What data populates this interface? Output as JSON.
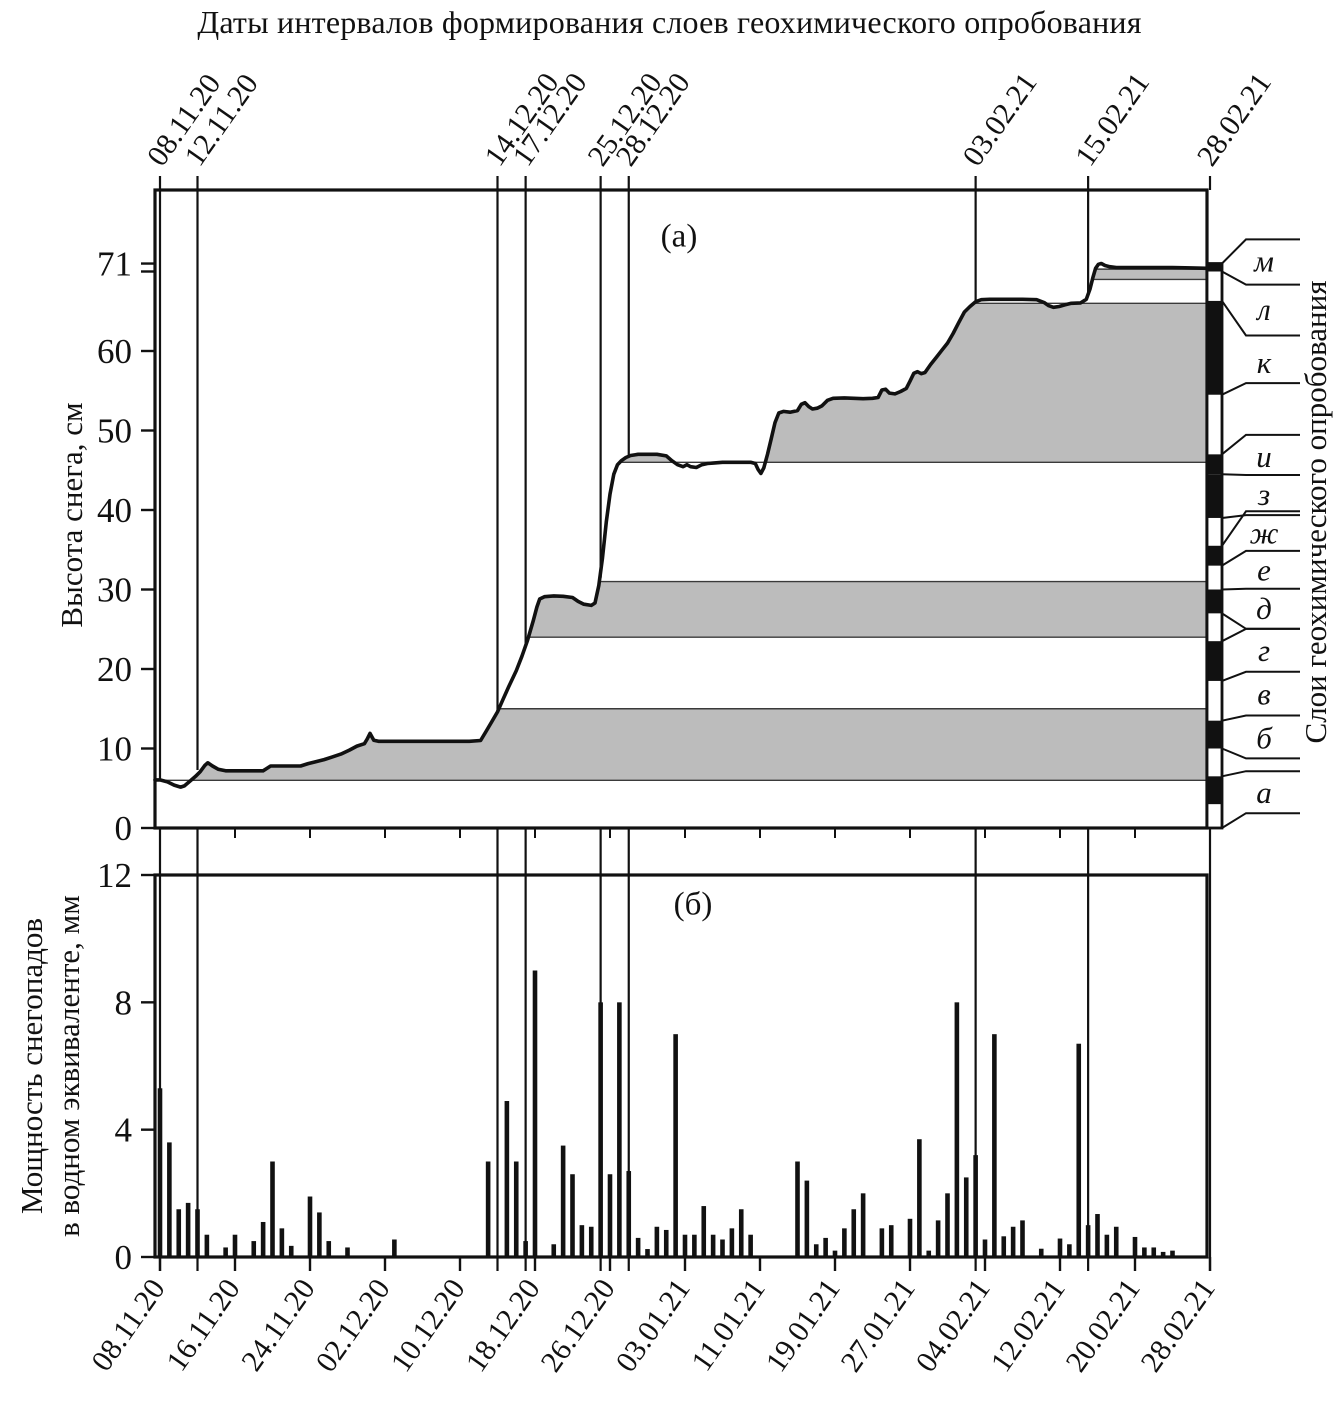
{
  "title": "Даты интервалов формирования слоев геохимического опробования",
  "colors": {
    "ink": "#111111",
    "band_gray": "#bcbcbc",
    "background": "#ffffff"
  },
  "chart_data": [
    {
      "type": "area",
      "id": "snow-height",
      "tag": "(а)",
      "ylabel": "Высота снега, см",
      "ylim": [
        0,
        80
      ],
      "yticks": [
        {
          "v": 0,
          "label": "0"
        },
        {
          "v": 10,
          "label": "10"
        },
        {
          "v": 20,
          "label": "20"
        },
        {
          "v": 30,
          "label": "30"
        },
        {
          "v": 40,
          "label": "40"
        },
        {
          "v": 50,
          "label": "50"
        },
        {
          "v": 60,
          "label": "60"
        },
        {
          "v": 70,
          "label": ""
        },
        {
          "v": 71,
          "label": "71"
        }
      ],
      "x_axis_note": "days since 08.11.20, 0..112",
      "sampling_dates": [
        {
          "label": "08.11.20",
          "day": 0,
          "stop": 6.05
        },
        {
          "label": "12.11.20",
          "day": 4,
          "stop": 7.3
        },
        {
          "label": "14.12.20",
          "day": 36,
          "stop": 14.6
        },
        {
          "label": "17.12.20",
          "day": 39,
          "stop": 23.0
        },
        {
          "label": "25.12.20",
          "day": 47,
          "stop": 31.5
        },
        {
          "label": "28.12.20",
          "day": 50,
          "stop": 46.8
        },
        {
          "label": "03.02.21",
          "day": 87,
          "stop": 66.2
        },
        {
          "label": "15.02.21",
          "day": 99,
          "stop": 67.0
        },
        {
          "label": "28.02.21",
          "day": 112,
          "stop": null
        }
      ],
      "gray_bands": [
        [
          6,
          15
        ],
        [
          24,
          31
        ],
        [
          46,
          66
        ],
        [
          69,
          70.3
        ]
      ],
      "boundary_lines": [
        {
          "v": 6,
          "start_day": -0.53
        },
        {
          "v": 15,
          "start_day": 36.3
        },
        {
          "v": 24,
          "start_day": 39.4
        },
        {
          "v": 31,
          "start_day": 46.9
        },
        {
          "v": 46,
          "start_day": 48.9
        },
        {
          "v": 66,
          "start_day": 86.8
        },
        {
          "v": 69,
          "start_day": 99.45
        },
        {
          "v": 70.3,
          "start_day": 99.75
        }
      ],
      "series": [
        [
          0,
          6.05
        ],
        [
          0.8,
          5.8
        ],
        [
          1.5,
          5.4
        ],
        [
          2.2,
          5.15
        ],
        [
          2.6,
          5.3
        ],
        [
          3.2,
          5.9
        ],
        [
          3.8,
          6.5
        ],
        [
          4.3,
          7.1
        ],
        [
          4.8,
          7.9
        ],
        [
          5.1,
          8.2
        ],
        [
          5.6,
          7.8
        ],
        [
          6.2,
          7.4
        ],
        [
          7,
          7.2
        ],
        [
          8,
          7.2
        ],
        [
          9,
          7.2
        ],
        [
          10,
          7.2
        ],
        [
          11,
          7.2
        ],
        [
          11.4,
          7.5
        ],
        [
          11.8,
          7.8
        ],
        [
          13,
          7.8
        ],
        [
          14,
          7.8
        ],
        [
          15,
          7.8
        ],
        [
          15.8,
          8.1
        ],
        [
          16.5,
          8.3
        ],
        [
          17.5,
          8.6
        ],
        [
          18.3,
          8.9
        ],
        [
          19.3,
          9.3
        ],
        [
          20.2,
          9.8
        ],
        [
          21,
          10.3
        ],
        [
          21.8,
          10.6
        ],
        [
          22.1,
          11.2
        ],
        [
          22.4,
          11.9
        ],
        [
          22.8,
          11.05
        ],
        [
          23.3,
          10.9
        ],
        [
          25,
          10.9
        ],
        [
          27,
          10.9
        ],
        [
          29,
          10.9
        ],
        [
          31,
          10.9
        ],
        [
          33,
          10.9
        ],
        [
          34.2,
          11.0
        ],
        [
          34.8,
          12.2
        ],
        [
          35.4,
          13.4
        ],
        [
          36,
          14.6
        ],
        [
          36.6,
          16.2
        ],
        [
          37.2,
          17.8
        ],
        [
          38,
          19.8
        ],
        [
          38.6,
          21.6
        ],
        [
          39.2,
          23.6
        ],
        [
          39.8,
          26
        ],
        [
          40.2,
          27.8
        ],
        [
          40.5,
          28.8
        ],
        [
          41,
          29.1
        ],
        [
          42,
          29.2
        ],
        [
          43,
          29.15
        ],
        [
          44,
          29.0
        ],
        [
          44.6,
          28.5
        ],
        [
          45.2,
          28.15
        ],
        [
          46,
          28.0
        ],
        [
          46.4,
          28.3
        ],
        [
          46.8,
          30.5
        ],
        [
          47.2,
          34
        ],
        [
          47.6,
          38.5
        ],
        [
          48,
          42
        ],
        [
          48.4,
          44.5
        ],
        [
          48.8,
          45.7
        ],
        [
          49.2,
          46.2
        ],
        [
          49.7,
          46.6
        ],
        [
          50.2,
          46.85
        ],
        [
          51,
          47
        ],
        [
          52,
          47
        ],
        [
          53,
          47
        ],
        [
          54,
          46.8
        ],
        [
          54.6,
          46.2
        ],
        [
          55.2,
          45.7
        ],
        [
          55.8,
          45.45
        ],
        [
          56.2,
          45.7
        ],
        [
          56.6,
          45.45
        ],
        [
          57.2,
          45.35
        ],
        [
          57.8,
          45.7
        ],
        [
          58.4,
          45.85
        ],
        [
          59,
          45.9
        ],
        [
          60,
          46
        ],
        [
          61,
          46
        ],
        [
          62,
          46
        ],
        [
          63,
          46
        ],
        [
          63.5,
          45.85
        ],
        [
          63.8,
          45.1
        ],
        [
          64.1,
          44.6
        ],
        [
          64.4,
          45.3
        ],
        [
          64.8,
          47
        ],
        [
          65.2,
          49
        ],
        [
          65.6,
          51
        ],
        [
          66,
          52.2
        ],
        [
          66.5,
          52.4
        ],
        [
          67.2,
          52.3
        ],
        [
          68,
          52.5
        ],
        [
          68.4,
          53.3
        ],
        [
          68.8,
          53.5
        ],
        [
          69.2,
          53.0
        ],
        [
          69.6,
          52.7
        ],
        [
          70.1,
          52.8
        ],
        [
          70.6,
          53.1
        ],
        [
          71.2,
          53.8
        ],
        [
          71.8,
          54.05
        ],
        [
          73,
          54.1
        ],
        [
          74,
          54.05
        ],
        [
          75,
          54
        ],
        [
          76,
          54.05
        ],
        [
          76.6,
          54.15
        ],
        [
          77,
          55.1
        ],
        [
          77.4,
          55.2
        ],
        [
          77.8,
          54.7
        ],
        [
          78.4,
          54.6
        ],
        [
          79,
          54.9
        ],
        [
          79.6,
          55.3
        ],
        [
          80,
          56.2
        ],
        [
          80.4,
          57.2
        ],
        [
          80.8,
          57.4
        ],
        [
          81.2,
          57.15
        ],
        [
          81.6,
          57.3
        ],
        [
          82.2,
          58.3
        ],
        [
          82.8,
          59.2
        ],
        [
          83.4,
          60.1
        ],
        [
          84,
          61
        ],
        [
          84.6,
          62.2
        ],
        [
          85.2,
          63.6
        ],
        [
          85.8,
          64.9
        ],
        [
          86.4,
          65.6
        ],
        [
          87,
          66.2
        ],
        [
          87.6,
          66.45
        ],
        [
          88.5,
          66.5
        ],
        [
          90,
          66.5
        ],
        [
          92,
          66.5
        ],
        [
          93.5,
          66.45
        ],
        [
          94.3,
          66.1
        ],
        [
          94.8,
          65.7
        ],
        [
          95.3,
          65.5
        ],
        [
          95.9,
          65.6
        ],
        [
          96.5,
          65.8
        ],
        [
          97.2,
          66
        ],
        [
          98.2,
          66.05
        ],
        [
          98.8,
          66.5
        ],
        [
          99.2,
          67.8
        ],
        [
          99.5,
          69.2
        ],
        [
          99.8,
          70.4
        ],
        [
          100.1,
          70.9
        ],
        [
          100.4,
          71
        ],
        [
          100.8,
          70.75
        ],
        [
          101.3,
          70.6
        ],
        [
          102,
          70.5
        ],
        [
          104,
          70.5
        ],
        [
          106,
          70.5
        ],
        [
          108,
          70.5
        ],
        [
          110,
          70.45
        ],
        [
          112,
          70.4
        ]
      ],
      "layers": {
        "caption": "Слои геохимического опробования",
        "segments": [
          {
            "from": 0,
            "to": 3,
            "fill": "white"
          },
          {
            "from": 3,
            "to": 6.5,
            "fill": "black"
          },
          {
            "from": 6.5,
            "to": 10,
            "fill": "white"
          },
          {
            "from": 10,
            "to": 13.5,
            "fill": "black"
          },
          {
            "from": 13.5,
            "to": 18.5,
            "fill": "white"
          },
          {
            "from": 18.5,
            "to": 23.5,
            "fill": "black"
          },
          {
            "from": 23.5,
            "to": 27,
            "fill": "white"
          },
          {
            "from": 27,
            "to": 30,
            "fill": "black"
          },
          {
            "from": 30,
            "to": 33,
            "fill": "white"
          },
          {
            "from": 33,
            "to": 35.5,
            "fill": "black"
          },
          {
            "from": 35.5,
            "to": 39,
            "fill": "white"
          },
          {
            "from": 39,
            "to": 44.5,
            "fill": "black"
          },
          {
            "from": 44.5,
            "to": 47,
            "fill": "black"
          },
          {
            "from": 47,
            "to": 54.5,
            "fill": "white"
          },
          {
            "from": 54.5,
            "to": 66.3,
            "fill": "black"
          },
          {
            "from": 66.3,
            "to": 70,
            "fill": "white"
          },
          {
            "from": 70,
            "to": 71,
            "fill": "black"
          }
        ],
        "labels": [
          {
            "letter": "а",
            "from": 0,
            "to": 6.5,
            "at": 4.5
          },
          {
            "letter": "б",
            "from": 10,
            "to": 13.5,
            "at": 11.4
          },
          {
            "letter": "в",
            "from": 13.5,
            "to": 18.5,
            "at": 16.9
          },
          {
            "letter": "г",
            "from": 18.5,
            "to": 23.5,
            "at": 22.4
          },
          {
            "letter": "д",
            "from": 27,
            "to": 30,
            "at": 27.7
          },
          {
            "letter": "е",
            "from": 30,
            "to": 33,
            "at": 32.5
          },
          {
            "letter": "ж",
            "from": 33,
            "to": 35.5,
            "at": 37.2
          },
          {
            "letter": "з",
            "from": 39,
            "to": 44.5,
            "at": 42.0
          },
          {
            "letter": "и",
            "from": 44.5,
            "to": 47,
            "at": 46.8
          },
          {
            "letter": "к",
            "from": 54.5,
            "to": 66.3,
            "at": 58.6
          },
          {
            "letter": "л",
            "from": 66.3,
            "to": 70,
            "at": 65.3
          },
          {
            "letter": "м",
            "from": 70,
            "to": 71,
            "at": 71.4
          }
        ]
      }
    },
    {
      "type": "bar",
      "id": "snowfall-water-equivalent",
      "tag": "(б)",
      "ylabel_line1": "Мощность снегопадов",
      "ylabel_line2": "в водном эквиваленте, мм",
      "ylim": [
        0,
        12
      ],
      "yticks": [
        {
          "v": 0,
          "label": "0"
        },
        {
          "v": 4,
          "label": "4"
        },
        {
          "v": 8,
          "label": "8"
        },
        {
          "v": 12,
          "label": "12"
        }
      ],
      "xtick_step_days": 8,
      "xtick_labels": [
        "08.11.20",
        "16.11.20",
        "24.11.20",
        "02.12.20",
        "10.12.20",
        "18.12.20",
        "26.12.20",
        "03.01.21",
        "11.01.21",
        "19.01.21",
        "27.01.21",
        "04.02.21",
        "12.02.21",
        "20.02.21",
        "28.02.21"
      ],
      "bars": [
        [
          0,
          5.3
        ],
        [
          1,
          3.6
        ],
        [
          2,
          1.5
        ],
        [
          3,
          1.7
        ],
        [
          4,
          1.5
        ],
        [
          5,
          0.7
        ],
        [
          7,
          0.3
        ],
        [
          8,
          0.7
        ],
        [
          10,
          0.5
        ],
        [
          11,
          1.1
        ],
        [
          12,
          3.0
        ],
        [
          13,
          0.9
        ],
        [
          14,
          0.35
        ],
        [
          16,
          1.9
        ],
        [
          17,
          1.4
        ],
        [
          18,
          0.5
        ],
        [
          20,
          0.3
        ],
        [
          25,
          0.55
        ],
        [
          35,
          3.0
        ],
        [
          37,
          4.9
        ],
        [
          38,
          3.0
        ],
        [
          39,
          0.5
        ],
        [
          40,
          9.0
        ],
        [
          42,
          0.4
        ],
        [
          43,
          3.5
        ],
        [
          44,
          2.6
        ],
        [
          45,
          1.0
        ],
        [
          46,
          0.95
        ],
        [
          47,
          8.0
        ],
        [
          48,
          2.6
        ],
        [
          49,
          8.0
        ],
        [
          50,
          2.7
        ],
        [
          51,
          0.6
        ],
        [
          52,
          0.25
        ],
        [
          53,
          0.95
        ],
        [
          54,
          0.85
        ],
        [
          55,
          7.0
        ],
        [
          56,
          0.7
        ],
        [
          57,
          0.7
        ],
        [
          58,
          1.6
        ],
        [
          59,
          0.7
        ],
        [
          60,
          0.55
        ],
        [
          61,
          0.9
        ],
        [
          62,
          1.5
        ],
        [
          63,
          0.7
        ],
        [
          68,
          3.0
        ],
        [
          69,
          2.4
        ],
        [
          70,
          0.4
        ],
        [
          71,
          0.6
        ],
        [
          72,
          0.2
        ],
        [
          73,
          0.9
        ],
        [
          74,
          1.5
        ],
        [
          75,
          2.0
        ],
        [
          77,
          0.9
        ],
        [
          78,
          1.0
        ],
        [
          80,
          1.2
        ],
        [
          81,
          3.7
        ],
        [
          82,
          0.2
        ],
        [
          83,
          1.15
        ],
        [
          84,
          2.0
        ],
        [
          85,
          8.0
        ],
        [
          86,
          2.5
        ],
        [
          87,
          3.2
        ],
        [
          88,
          0.55
        ],
        [
          89,
          7.0
        ],
        [
          90,
          0.65
        ],
        [
          91,
          0.95
        ],
        [
          92,
          1.15
        ],
        [
          94,
          0.26
        ],
        [
          96,
          0.58
        ],
        [
          97,
          0.4
        ],
        [
          98,
          6.7
        ],
        [
          99,
          1.0
        ],
        [
          100,
          1.35
        ],
        [
          101,
          0.7
        ],
        [
          102,
          0.95
        ],
        [
          104,
          0.63
        ],
        [
          105,
          0.3
        ],
        [
          106,
          0.3
        ],
        [
          107,
          0.16
        ],
        [
          108,
          0.2
        ]
      ]
    }
  ]
}
